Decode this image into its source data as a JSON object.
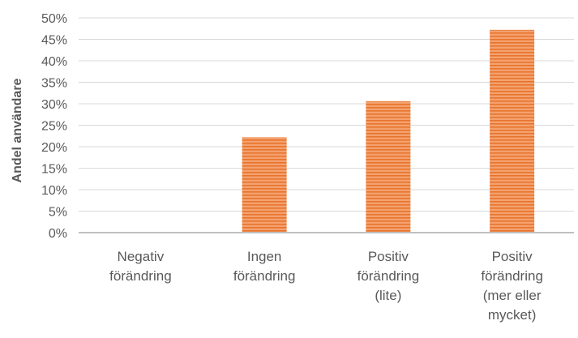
{
  "chart_data": {
    "type": "bar",
    "ylabel": "Andel användare",
    "ylim": [
      0,
      50
    ],
    "ytick_step": 5,
    "ytick_suffix": "%",
    "grid": true,
    "categories": [
      [
        "Negativ",
        "förändring"
      ],
      [
        "Ingen",
        "förändring"
      ],
      [
        "Positiv",
        "förändring",
        "(lite)"
      ],
      [
        "Positiv",
        "förändring",
        "(mer eller",
        "mycket)"
      ]
    ],
    "values": [
      0,
      22.2,
      30.6,
      47.2
    ],
    "colors": {
      "bar_fill": "#f4a16f",
      "bar_stripe": "#e8742c",
      "grid": "#d9d9d9",
      "axis": "#bfbfbf",
      "text": "#595959"
    }
  }
}
